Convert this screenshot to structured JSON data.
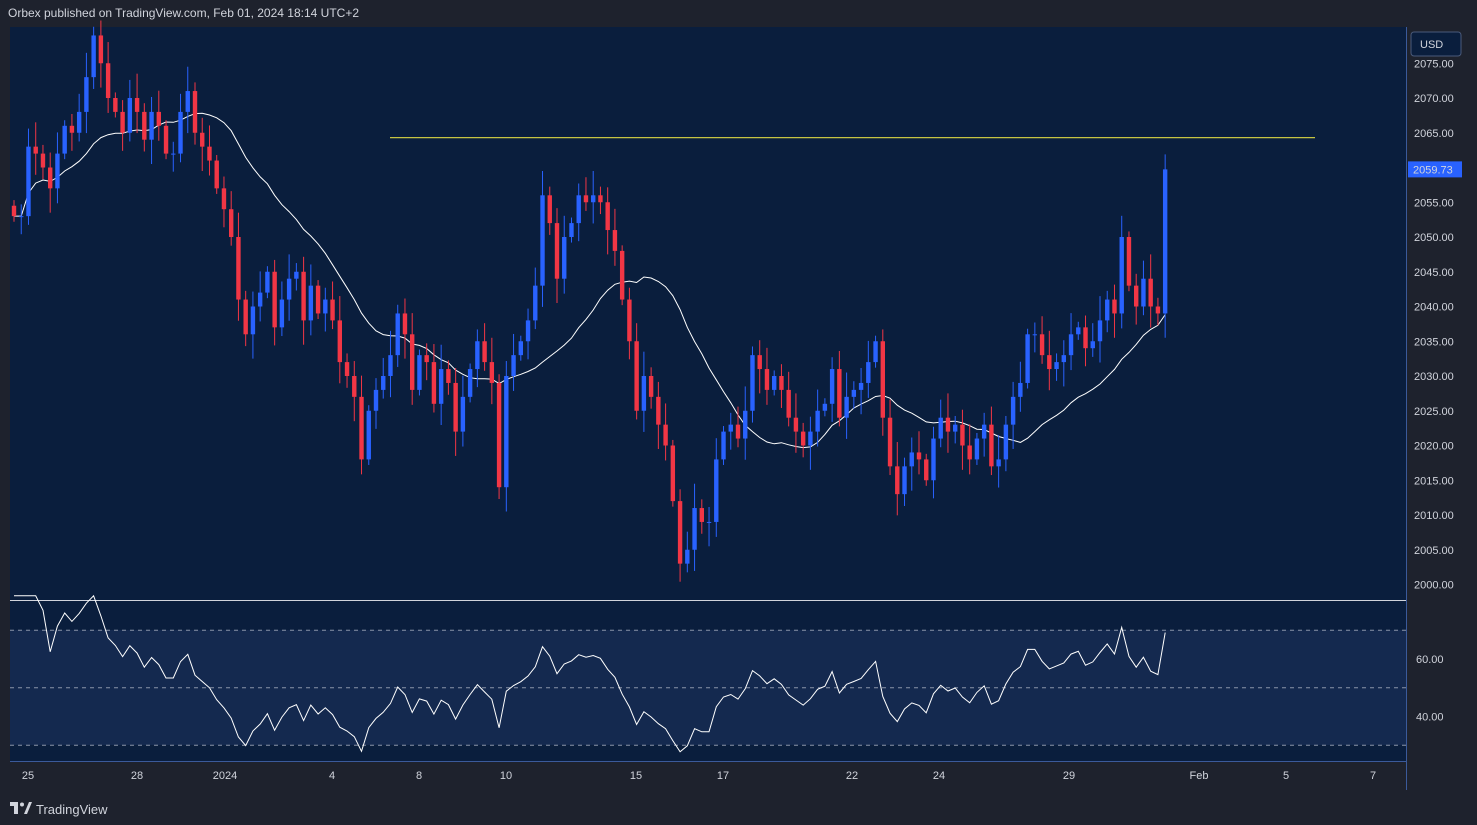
{
  "header": {
    "published": "Orbex published on TradingView.com, Feb 01, 2024 18:14 UTC+2"
  },
  "footer": {
    "brand": "TradingView",
    "logo_icon": "tradingview-logo-icon"
  },
  "price_axis": {
    "currency": "USD",
    "last_price": "2059.73"
  },
  "colors": {
    "background": "#0a1e3d",
    "rsi_band": "#14294f",
    "up": "#2962ff",
    "down": "#f23645",
    "ma": "#ffffff",
    "resistance": "#c6c442",
    "last_price_bg": "#2962ff"
  },
  "chart_data": [
    {
      "type": "candlestick",
      "title": "",
      "ylim": [
        1998,
        2078
      ],
      "y_ticks": [
        "2000.00",
        "2005.00",
        "2010.00",
        "2015.00",
        "2020.00",
        "2025.00",
        "2030.00",
        "2035.00",
        "2040.00",
        "2045.00",
        "2050.00",
        "2055.00",
        "2060.00",
        "2065.00",
        "2070.00",
        "2075.00"
      ],
      "x_tick_labels": [
        "25",
        "28",
        "2024",
        "4",
        "8",
        "10",
        "15",
        "17",
        "22",
        "24",
        "29",
        "Feb",
        "5",
        "7"
      ],
      "resistance_level": 2064.3,
      "close": [
        2053,
        2053,
        2063,
        2062,
        2060,
        2057,
        2062,
        2066,
        2065,
        2068,
        2073,
        2079,
        2075,
        2070,
        2068,
        2065,
        2070,
        2068,
        2064,
        2068,
        2066,
        2062,
        2062,
        2068,
        2071,
        2065,
        2063,
        2061,
        2057,
        2054,
        2050,
        2041,
        2036,
        2040,
        2042,
        2045,
        2037,
        2041,
        2044,
        2045,
        2038,
        2043,
        2039,
        2041,
        2038,
        2032,
        2030,
        2027,
        2018,
        2025,
        2028,
        2030,
        2033,
        2039,
        2036,
        2028,
        2033,
        2032,
        2026,
        2031,
        2029,
        2022,
        2027,
        2031,
        2035,
        2032,
        2029,
        2014,
        2030,
        2033,
        2035,
        2038,
        2043,
        2056,
        2052,
        2044,
        2050,
        2052,
        2056,
        2055,
        2056,
        2055,
        2051,
        2048,
        2041,
        2035,
        2025,
        2030,
        2027,
        2023,
        2020,
        2012,
        2003,
        2005,
        2011,
        2009,
        2009,
        2018,
        2022,
        2023,
        2021,
        2025,
        2033,
        2031,
        2028,
        2030,
        2028,
        2024,
        2022,
        2020,
        2022,
        2025,
        2026,
        2031,
        2024,
        2027,
        2028,
        2029,
        2032,
        2035,
        2024,
        2017,
        2013,
        2017,
        2019,
        2018,
        2015,
        2021,
        2024,
        2022,
        2023,
        2020,
        2018,
        2021,
        2023,
        2017,
        2018,
        2023,
        2027,
        2029,
        2036,
        2036,
        2033,
        2031,
        2032,
        2033,
        2036,
        2037,
        2034,
        2035,
        2038,
        2041,
        2039,
        2050,
        2043,
        2040,
        2044,
        2040,
        2039,
        2059.73
      ]
    },
    {
      "type": "line",
      "name": "",
      "ylim": [
        20,
        82
      ],
      "y_ticks": [
        "40.00",
        "60.00"
      ],
      "levels": [
        30,
        50,
        70
      ]
    }
  ]
}
